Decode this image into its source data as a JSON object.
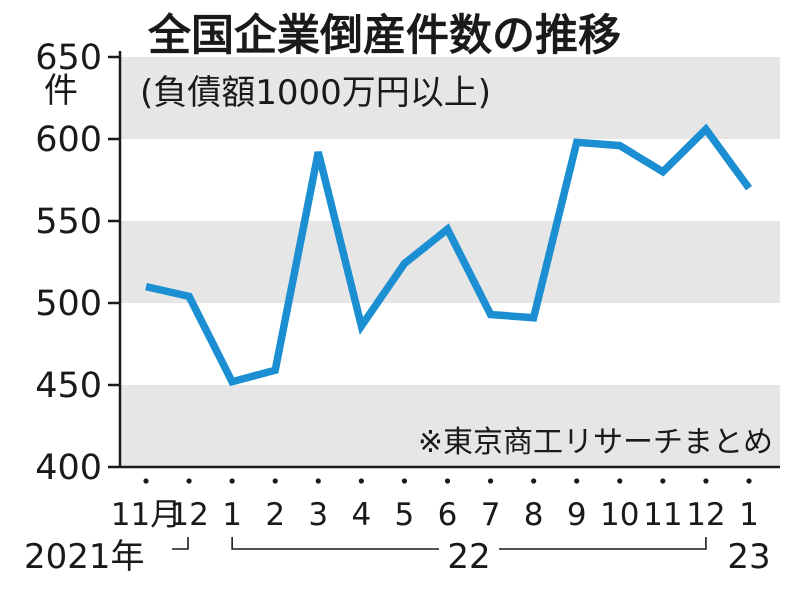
{
  "chart_data": {
    "type": "line",
    "title": "全国企業倒産件数の推移",
    "subtitle": "(負債額1000万円以上)",
    "y_unit": "件",
    "source_note": "※東京商工リサーチまとめ",
    "ylim": [
      400,
      650
    ],
    "y_ticks": [
      "650",
      "600",
      "550",
      "500",
      "450",
      "400"
    ],
    "grid": "alternating horizontal bands",
    "categories": [
      "11月",
      "12",
      "1",
      "2",
      "3",
      "4",
      "5",
      "6",
      "7",
      "8",
      "9",
      "10",
      "11",
      "12",
      "1"
    ],
    "year_labels": [
      {
        "text": "2021年",
        "from": 0,
        "to": 1
      },
      {
        "text": "22",
        "from": 2,
        "to": 13
      },
      {
        "text": "23",
        "from": 14,
        "to": 14
      }
    ],
    "series": [
      {
        "values": [
          510,
          504,
          452,
          459,
          592,
          486,
          524,
          545,
          493,
          491,
          598,
          596,
          580,
          606,
          570
        ]
      }
    ],
    "line_color": "#1b8fd2",
    "band_color": "#e6e6e6"
  }
}
